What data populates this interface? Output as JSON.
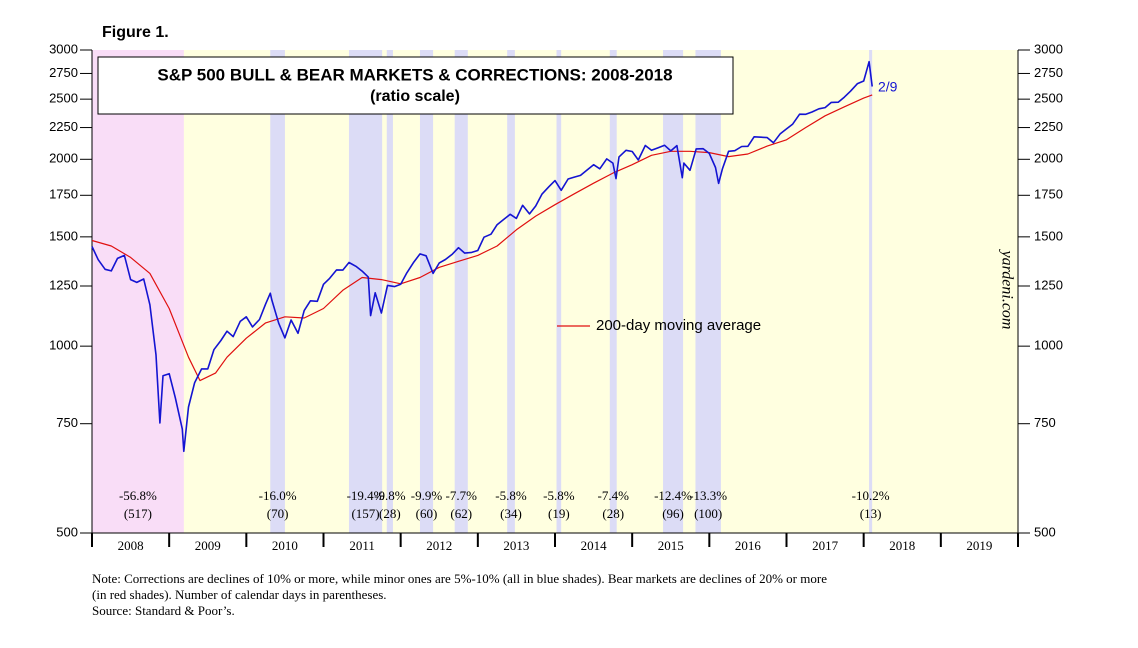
{
  "chart_data": {
    "type": "line",
    "figure_label": "Figure 1.",
    "title": "S&P 500 BULL & BEAR MARKETS & CORRECTIONS: 2008-2018",
    "subtitle": "(ratio scale)",
    "log_scale": true,
    "xlim": [
      2008,
      2020
    ],
    "xticks": [
      {
        "value": 2008,
        "label": "2008"
      },
      {
        "value": 2009,
        "label": "2009"
      },
      {
        "value": 2010,
        "label": "2010"
      },
      {
        "value": 2011,
        "label": "2011"
      },
      {
        "value": 2012,
        "label": "2012"
      },
      {
        "value": 2013,
        "label": "2013"
      },
      {
        "value": 2014,
        "label": "2014"
      },
      {
        "value": 2015,
        "label": "2015"
      },
      {
        "value": 2016,
        "label": "2016"
      },
      {
        "value": 2017,
        "label": "2017"
      },
      {
        "value": 2018,
        "label": "2018"
      },
      {
        "value": 2019,
        "label": "2019"
      }
    ],
    "ylim": [
      500,
      3000
    ],
    "yticks": [
      500,
      750,
      1000,
      1250,
      1500,
      1750,
      2000,
      2250,
      2500,
      2750,
      3000
    ],
    "series": [
      {
        "color": "#1414d2",
        "x": [
          2008.0,
          2008.08,
          2008.17,
          2008.25,
          2008.33,
          2008.42,
          2008.5,
          2008.58,
          2008.67,
          2008.75,
          2008.83,
          2008.88,
          2008.92,
          2009.0,
          2009.08,
          2009.17,
          2009.19,
          2009.25,
          2009.33,
          2009.42,
          2009.5,
          2009.58,
          2009.67,
          2009.75,
          2009.83,
          2009.92,
          2010.0,
          2010.08,
          2010.17,
          2010.25,
          2010.31,
          2010.33,
          2010.42,
          2010.5,
          2010.58,
          2010.67,
          2010.75,
          2010.83,
          2010.92,
          2011.0,
          2011.08,
          2011.17,
          2011.25,
          2011.33,
          2011.42,
          2011.5,
          2011.58,
          2011.61,
          2011.67,
          2011.75,
          2011.83,
          2011.92,
          2012.0,
          2012.08,
          2012.17,
          2012.25,
          2012.33,
          2012.42,
          2012.5,
          2012.58,
          2012.67,
          2012.75,
          2012.83,
          2012.92,
          2013.0,
          2013.08,
          2013.17,
          2013.25,
          2013.33,
          2013.42,
          2013.5,
          2013.58,
          2013.67,
          2013.75,
          2013.83,
          2013.92,
          2014.0,
          2014.08,
          2014.17,
          2014.25,
          2014.33,
          2014.42,
          2014.5,
          2014.58,
          2014.67,
          2014.75,
          2014.79,
          2014.83,
          2014.92,
          2015.0,
          2015.08,
          2015.17,
          2015.25,
          2015.33,
          2015.42,
          2015.5,
          2015.58,
          2015.65,
          2015.67,
          2015.75,
          2015.83,
          2015.92,
          2016.0,
          2016.08,
          2016.12,
          2016.17,
          2016.25,
          2016.33,
          2016.42,
          2016.5,
          2016.58,
          2016.67,
          2016.75,
          2016.83,
          2016.92,
          2017.0,
          2017.08,
          2017.17,
          2017.25,
          2017.33,
          2017.42,
          2017.5,
          2017.58,
          2017.67,
          2017.75,
          2017.83,
          2017.92,
          2018.0,
          2018.07,
          2018.11
        ],
        "values": [
          1447,
          1378,
          1330,
          1322,
          1385,
          1400,
          1280,
          1267,
          1283,
          1166,
          968,
          752,
          896,
          903,
          826,
          735,
          677,
          798,
          873,
          919,
          919,
          987,
          1021,
          1057,
          1036,
          1096,
          1115,
          1074,
          1104,
          1169,
          1217,
          1187,
          1089,
          1031,
          1102,
          1049,
          1141,
          1183,
          1181,
          1258,
          1286,
          1327,
          1326,
          1364,
          1345,
          1321,
          1292,
          1120,
          1219,
          1131,
          1253,
          1247,
          1258,
          1312,
          1366,
          1408,
          1398,
          1310,
          1362,
          1379,
          1407,
          1441,
          1412,
          1416,
          1426,
          1498,
          1515,
          1569,
          1598,
          1631,
          1606,
          1686,
          1633,
          1682,
          1757,
          1806,
          1848,
          1783,
          1859,
          1872,
          1884,
          1924,
          1960,
          1931,
          2003,
          1972,
          1862,
          2018,
          2068,
          2059,
          1995,
          2105,
          2068,
          2086,
          2107,
          2063,
          2104,
          1868,
          1972,
          1920,
          2079,
          2080,
          2044,
          1940,
          1829,
          1932,
          2060,
          2065,
          2097,
          2099,
          2174,
          2171,
          2168,
          2126,
          2199,
          2239,
          2279,
          2364,
          2363,
          2384,
          2412,
          2423,
          2470,
          2472,
          2519,
          2575,
          2648,
          2674,
          2873,
          2620
        ]
      },
      {
        "name": "200-day moving average",
        "color": "#e01010",
        "x": [
          2008.0,
          2008.25,
          2008.5,
          2008.75,
          2009.0,
          2009.25,
          2009.4,
          2009.6,
          2009.75,
          2010.0,
          2010.25,
          2010.5,
          2010.75,
          2011.0,
          2011.25,
          2011.5,
          2011.75,
          2012.0,
          2012.25,
          2012.5,
          2012.75,
          2013.0,
          2013.25,
          2013.5,
          2013.75,
          2014.0,
          2014.25,
          2014.5,
          2014.75,
          2015.0,
          2015.25,
          2015.5,
          2015.75,
          2016.0,
          2016.25,
          2016.5,
          2016.75,
          2017.0,
          2017.25,
          2017.5,
          2017.75,
          2018.0,
          2018.11
        ],
        "values": [
          1480,
          1450,
          1390,
          1310,
          1150,
          960,
          880,
          905,
          960,
          1030,
          1090,
          1115,
          1110,
          1150,
          1230,
          1290,
          1280,
          1260,
          1290,
          1340,
          1370,
          1400,
          1450,
          1540,
          1620,
          1690,
          1760,
          1830,
          1900,
          1960,
          2030,
          2060,
          2060,
          2050,
          2020,
          2040,
          2100,
          2150,
          2250,
          2350,
          2430,
          2510,
          2540
        ]
      }
    ],
    "periods": [
      {
        "kind": "bear",
        "color": "#f9ddf7",
        "start": 2008.0,
        "end": 2009.19,
        "decline": "-56.8%",
        "days": "(517)"
      },
      {
        "kind": "correction",
        "color": "#dcdcf6",
        "start": 2010.31,
        "end": 2010.5,
        "decline": "-16.0%",
        "days": "(70)"
      },
      {
        "kind": "correction",
        "color": "#dcdcf6",
        "start": 2011.33,
        "end": 2011.76,
        "decline": "-19.4%",
        "days": "(157)"
      },
      {
        "kind": "correction",
        "color": "#dcdcf6",
        "start": 2011.82,
        "end": 2011.9,
        "decline": "-9.8%",
        "days": "(28)"
      },
      {
        "kind": "correction",
        "color": "#dcdcf6",
        "start": 2012.25,
        "end": 2012.42,
        "decline": "-9.9%",
        "days": "(60)"
      },
      {
        "kind": "correction",
        "color": "#dcdcf6",
        "start": 2012.7,
        "end": 2012.87,
        "decline": "-7.7%",
        "days": "(62)"
      },
      {
        "kind": "correction",
        "color": "#dcdcf6",
        "start": 2013.38,
        "end": 2013.48,
        "decline": "-5.8%",
        "days": "(34)"
      },
      {
        "kind": "correction",
        "color": "#dcdcf6",
        "start": 2014.02,
        "end": 2014.08,
        "decline": "-5.8%",
        "days": "(19)"
      },
      {
        "kind": "correction",
        "color": "#dcdcf6",
        "start": 2014.71,
        "end": 2014.8,
        "decline": "-7.4%",
        "days": "(28)"
      },
      {
        "kind": "correction",
        "color": "#dcdcf6",
        "start": 2015.4,
        "end": 2015.66,
        "decline": "-12.4%",
        "days": "(96)"
      },
      {
        "kind": "correction",
        "color": "#dcdcf6",
        "start": 2015.82,
        "end": 2016.15,
        "decline": "-13.3%",
        "days": "(100)"
      },
      {
        "kind": "correction",
        "color": "#dcdcf6",
        "start": 2018.07,
        "end": 2018.11,
        "decline": "-10.2%",
        "days": "(13)"
      }
    ],
    "background": "#ffffe0",
    "end_annotation": "2/9",
    "watermark": "yardeni.com",
    "notes": [
      "Note: Corrections are declines of 10% or more, while minor ones are 5%-10% (all in blue shades).  Bear markets are declines of 20% or more",
      "(in red shades). Number of calendar days in parentheses.",
      "Source: Standard & Poor’s."
    ]
  }
}
